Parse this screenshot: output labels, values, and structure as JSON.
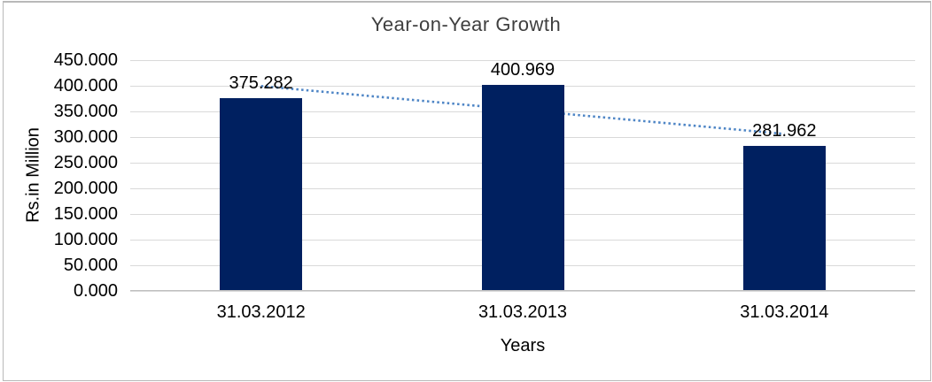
{
  "chart_data": {
    "type": "bar",
    "title": "Year-on-Year Growth",
    "categories": [
      "31.03.2012",
      "31.03.2013",
      "31.03.2014"
    ],
    "values": [
      375.282,
      400.969,
      281.962
    ],
    "data_labels": [
      "375.282",
      "400.969",
      "281.962"
    ],
    "xlabel": "Years",
    "ylabel": "Rs.in Million",
    "ylim": [
      0,
      450
    ],
    "ytick_step": 50,
    "ytick_labels": [
      "0.000",
      "50.000",
      "100.000",
      "150.000",
      "200.000",
      "250.000",
      "300.000",
      "350.000",
      "400.000",
      "450.000"
    ],
    "grid": true,
    "legend": "none",
    "trendline": {
      "type": "linear",
      "style": "dotted"
    },
    "colors": {
      "bar": "#002060",
      "trendline": "#4f86c6",
      "gridline": "#d9d9d9",
      "axis_line": "#bfbfbf",
      "title_text": "#3f3f3f",
      "label_text": "#000000",
      "frame_border": "#b9b9b9",
      "background": "#ffffff"
    }
  }
}
